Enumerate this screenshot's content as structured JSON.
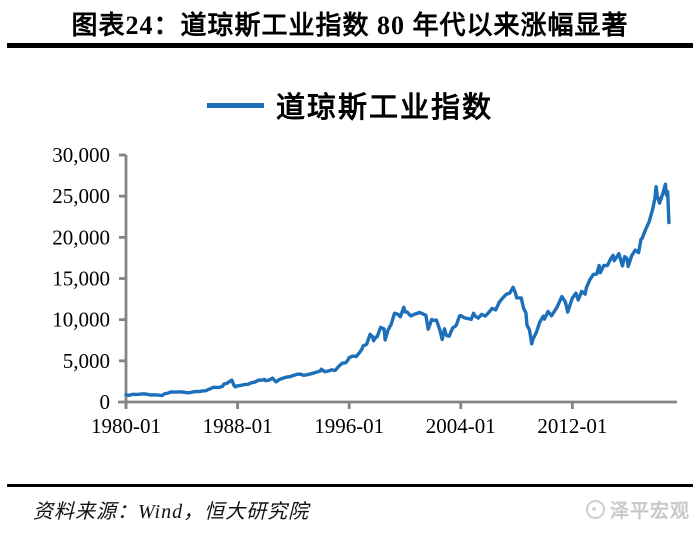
{
  "figure": {
    "title": "图表24：道琼斯工业指数 80 年代以来涨幅显著",
    "source_note": "资料来源：Wind，恒大研究院",
    "brand_name": "泽平宏观"
  },
  "chart_data": {
    "type": "line",
    "title": "道琼斯工业指数 80 年代以来涨幅显著",
    "legend_position": "top",
    "grid": false,
    "axis_color": "#858585",
    "text_color": "#000000",
    "x_axis": {
      "ticks": [
        "1980-01",
        "1988-01",
        "1996-01",
        "2004-01",
        "2012-01"
      ],
      "range_years": [
        1980.0,
        2019.5
      ]
    },
    "y_axis": {
      "ticks": [
        0,
        5000,
        10000,
        15000,
        20000,
        25000,
        30000
      ],
      "tick_labels": [
        "0",
        "5,000",
        "10,000",
        "15,000",
        "20,000",
        "25,000",
        "30,000"
      ],
      "range": [
        0,
        30000
      ]
    },
    "series": [
      {
        "name": "道琼斯工业指数",
        "color": "#1C6FB8",
        "points": [
          [
            "1980-01",
            876
          ],
          [
            "1980-04",
            817
          ],
          [
            "1980-07",
            935
          ],
          [
            "1980-10",
            925
          ],
          [
            "1981-01",
            947
          ],
          [
            "1981-04",
            998
          ],
          [
            "1981-07",
            952
          ],
          [
            "1981-10",
            853
          ],
          [
            "1982-01",
            871
          ],
          [
            "1982-04",
            848
          ],
          [
            "1982-08",
            777
          ],
          [
            "1982-10",
            992
          ],
          [
            "1982-12",
            1047
          ],
          [
            "1983-01",
            1076
          ],
          [
            "1983-04",
            1226
          ],
          [
            "1983-07",
            1199
          ],
          [
            "1983-10",
            1225
          ],
          [
            "1984-01",
            1221
          ],
          [
            "1984-04",
            1171
          ],
          [
            "1984-07",
            1115
          ],
          [
            "1984-10",
            1207
          ],
          [
            "1985-01",
            1287
          ],
          [
            "1985-04",
            1258
          ],
          [
            "1985-07",
            1347
          ],
          [
            "1985-10",
            1374
          ],
          [
            "1985-12",
            1547
          ],
          [
            "1986-01",
            1571
          ],
          [
            "1986-04",
            1784
          ],
          [
            "1986-07",
            1775
          ],
          [
            "1986-09",
            1768
          ],
          [
            "1986-12",
            1896
          ],
          [
            "1987-01",
            2158
          ],
          [
            "1987-04",
            2286
          ],
          [
            "1987-07",
            2572
          ],
          [
            "1987-08",
            2663
          ],
          [
            "1987-10",
            1994
          ],
          [
            "1987-11",
            1834
          ],
          [
            "1987-12",
            1939
          ],
          [
            "1988-01",
            1958
          ],
          [
            "1988-04",
            2032
          ],
          [
            "1988-07",
            2129
          ],
          [
            "1988-10",
            2149
          ],
          [
            "1989-01",
            2342
          ],
          [
            "1989-04",
            2419
          ],
          [
            "1989-07",
            2661
          ],
          [
            "1989-10",
            2645
          ],
          [
            "1989-12",
            2753
          ],
          [
            "1990-01",
            2590
          ],
          [
            "1990-04",
            2657
          ],
          [
            "1990-07",
            2905
          ],
          [
            "1990-10",
            2442
          ],
          [
            "1990-12",
            2634
          ],
          [
            "1991-01",
            2736
          ],
          [
            "1991-04",
            2888
          ],
          [
            "1991-07",
            3025
          ],
          [
            "1991-10",
            3069
          ],
          [
            "1991-12",
            3169
          ],
          [
            "1992-01",
            3223
          ],
          [
            "1992-04",
            3359
          ],
          [
            "1992-07",
            3393
          ],
          [
            "1992-10",
            3226
          ],
          [
            "1992-12",
            3301
          ],
          [
            "1993-01",
            3310
          ],
          [
            "1993-04",
            3427
          ],
          [
            "1993-07",
            3540
          ],
          [
            "1993-10",
            3681
          ],
          [
            "1993-12",
            3754
          ],
          [
            "1994-01",
            3978
          ],
          [
            "1994-04",
            3682
          ],
          [
            "1994-07",
            3765
          ],
          [
            "1994-10",
            3908
          ],
          [
            "1994-12",
            3834
          ],
          [
            "1995-01",
            3844
          ],
          [
            "1995-04",
            4321
          ],
          [
            "1995-07",
            4708
          ],
          [
            "1995-10",
            4756
          ],
          [
            "1995-12",
            5117
          ],
          [
            "1996-01",
            5395
          ],
          [
            "1996-04",
            5569
          ],
          [
            "1996-07",
            5529
          ],
          [
            "1996-10",
            6029
          ],
          [
            "1996-12",
            6448
          ],
          [
            "1997-01",
            6813
          ],
          [
            "1997-04",
            7009
          ],
          [
            "1997-07",
            8223
          ],
          [
            "1997-09",
            7945
          ],
          [
            "1997-10",
            7442
          ],
          [
            "1997-12",
            7908
          ],
          [
            "1998-01",
            7907
          ],
          [
            "1998-04",
            9063
          ],
          [
            "1998-07",
            8883
          ],
          [
            "1998-08",
            7539
          ],
          [
            "1998-10",
            8592
          ],
          [
            "1998-12",
            9181
          ],
          [
            "1999-01",
            9359
          ],
          [
            "1999-04",
            10789
          ],
          [
            "1999-07",
            10655
          ],
          [
            "1999-09",
            10337
          ],
          [
            "1999-12",
            11497
          ],
          [
            "2000-01",
            10941
          ],
          [
            "2000-03",
            10922
          ],
          [
            "2000-06",
            10448
          ],
          [
            "2000-09",
            10651
          ],
          [
            "2000-12",
            10787
          ],
          [
            "2001-01",
            10887
          ],
          [
            "2001-04",
            10735
          ],
          [
            "2001-07",
            10523
          ],
          [
            "2001-09",
            8848
          ],
          [
            "2001-12",
            10022
          ],
          [
            "2002-01",
            9920
          ],
          [
            "2002-04",
            9946
          ],
          [
            "2002-07",
            8737
          ],
          [
            "2002-09",
            7592
          ],
          [
            "2002-11",
            8896
          ],
          [
            "2002-12",
            8342
          ],
          [
            "2003-01",
            8054
          ],
          [
            "2003-03",
            7992
          ],
          [
            "2003-06",
            8985
          ],
          [
            "2003-09",
            9275
          ],
          [
            "2003-12",
            10454
          ],
          [
            "2004-01",
            10488
          ],
          [
            "2004-04",
            10226
          ],
          [
            "2004-07",
            10140
          ],
          [
            "2004-10",
            10027
          ],
          [
            "2004-12",
            10783
          ],
          [
            "2005-01",
            10490
          ],
          [
            "2005-04",
            10193
          ],
          [
            "2005-07",
            10641
          ],
          [
            "2005-10",
            10440
          ],
          [
            "2005-12",
            10718
          ],
          [
            "2006-01",
            10865
          ],
          [
            "2006-04",
            11367
          ],
          [
            "2006-07",
            11186
          ],
          [
            "2006-10",
            12080
          ],
          [
            "2006-12",
            12463
          ],
          [
            "2007-01",
            12622
          ],
          [
            "2007-04",
            13063
          ],
          [
            "2007-07",
            13212
          ],
          [
            "2007-10",
            13930
          ],
          [
            "2007-12",
            13265
          ],
          [
            "2008-01",
            12650
          ],
          [
            "2008-05",
            12638
          ],
          [
            "2008-07",
            11378
          ],
          [
            "2008-09",
            10851
          ],
          [
            "2008-10",
            9325
          ],
          [
            "2008-12",
            8776
          ],
          [
            "2009-01",
            8001
          ],
          [
            "2009-02",
            7063
          ],
          [
            "2009-03",
            7609
          ],
          [
            "2009-06",
            8447
          ],
          [
            "2009-09",
            9712
          ],
          [
            "2009-12",
            10428
          ],
          [
            "2010-01",
            10067
          ],
          [
            "2010-04",
            11009
          ],
          [
            "2010-07",
            10466
          ],
          [
            "2010-10",
            11118
          ],
          [
            "2010-12",
            11578
          ],
          [
            "2011-01",
            11892
          ],
          [
            "2011-04",
            12811
          ],
          [
            "2011-07",
            12143
          ],
          [
            "2011-09",
            10913
          ],
          [
            "2011-12",
            12218
          ],
          [
            "2012-01",
            12633
          ],
          [
            "2012-04",
            13214
          ],
          [
            "2012-06",
            12393
          ],
          [
            "2012-09",
            13437
          ],
          [
            "2012-12",
            13104
          ],
          [
            "2013-01",
            13861
          ],
          [
            "2013-04",
            14840
          ],
          [
            "2013-07",
            15500
          ],
          [
            "2013-10",
            15546
          ],
          [
            "2013-12",
            16576
          ],
          [
            "2014-01",
            15699
          ],
          [
            "2014-04",
            16581
          ],
          [
            "2014-07",
            16563
          ],
          [
            "2014-10",
            17391
          ],
          [
            "2014-12",
            17823
          ],
          [
            "2015-01",
            17165
          ],
          [
            "2015-05",
            18011
          ],
          [
            "2015-08",
            16528
          ],
          [
            "2015-10",
            17664
          ],
          [
            "2015-12",
            17425
          ],
          [
            "2016-01",
            16466
          ],
          [
            "2016-04",
            17774
          ],
          [
            "2016-07",
            18432
          ],
          [
            "2016-10",
            18142
          ],
          [
            "2016-12",
            19763
          ],
          [
            "2017-01",
            19864
          ],
          [
            "2017-04",
            20941
          ],
          [
            "2017-07",
            21891
          ],
          [
            "2017-10",
            23377
          ],
          [
            "2017-12",
            24719
          ],
          [
            "2018-01",
            26149
          ],
          [
            "2018-02",
            25029
          ],
          [
            "2018-04",
            24163
          ],
          [
            "2018-07",
            25415
          ],
          [
            "2018-09",
            26458
          ],
          [
            "2018-10",
            25116
          ],
          [
            "2018-11",
            25538
          ],
          [
            "2018-12",
            21792
          ]
        ]
      }
    ]
  }
}
